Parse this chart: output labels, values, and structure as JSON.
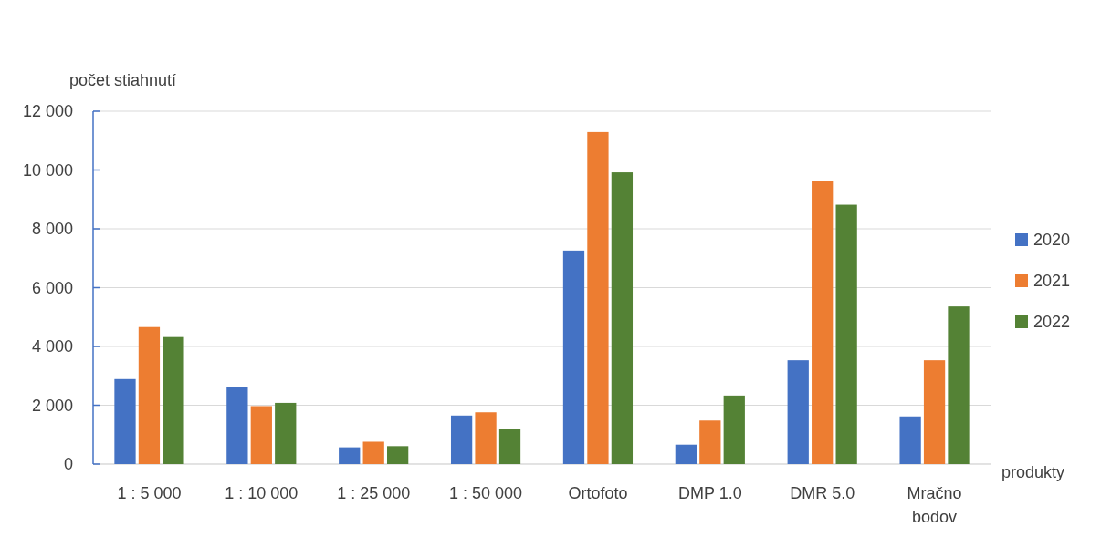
{
  "chart_data": {
    "type": "bar",
    "ylabel": "počet stiahnutí",
    "xlabel": "produkty",
    "categories": [
      "1 : 5 000",
      "1 : 10 000",
      "1 : 25 000",
      "1 : 50 000",
      "Ortofoto",
      "DMP 1.0",
      "DMR 5.0",
      "Mračno bodov"
    ],
    "series": [
      {
        "name": "2020",
        "color": "#4472c4",
        "values": [
          2890,
          2610,
          570,
          1650,
          7260,
          660,
          3530,
          1620
        ]
      },
      {
        "name": "2021",
        "color": "#ed7d31",
        "values": [
          4660,
          1970,
          760,
          1760,
          11290,
          1480,
          9620,
          3530
        ]
      },
      {
        "name": "2022",
        "color": "#548235",
        "values": [
          4320,
          2080,
          610,
          1180,
          9920,
          2330,
          8820,
          5360
        ]
      }
    ],
    "ylim": [
      0,
      12000
    ],
    "yticks": [
      0,
      {
        "value": 2000,
        "label": "2 000"
      },
      {
        "value": 4000,
        "label": "4 000"
      },
      {
        "value": 6000,
        "label": "6 000"
      },
      {
        "value": 8000,
        "label": "8 000"
      },
      {
        "value": 10000,
        "label": "10 000"
      },
      {
        "value": 12000,
        "label": "12 000"
      }
    ],
    "grid": "y",
    "legend": "right"
  }
}
